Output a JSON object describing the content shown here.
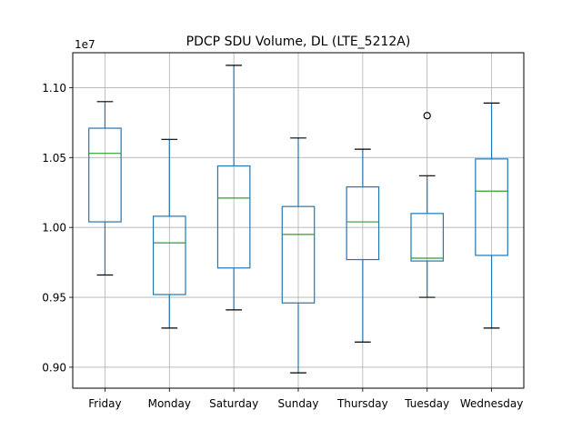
{
  "chart_data": {
    "type": "box",
    "title": "PDCP SDU Volume, DL (LTE_5212A)",
    "xlabel": "",
    "ylabel": "",
    "y_offset_text": "1e7",
    "ylim": [
      0.885,
      1.125
    ],
    "yticks": [
      0.9,
      0.95,
      1.0,
      1.05,
      1.1
    ],
    "ytick_labels": [
      "0.90",
      "0.95",
      "1.00",
      "1.05",
      "1.10"
    ],
    "grid": true,
    "colors": {
      "box": "#1f77b4",
      "median": "#2ca02c",
      "cap": "#000000",
      "grid": "#b0b0b0",
      "flier": "#000000"
    },
    "categories": [
      "Friday",
      "Monday",
      "Saturday",
      "Sunday",
      "Thursday",
      "Tuesday",
      "Wednesday"
    ],
    "boxes": [
      {
        "whislo": 0.966,
        "q1": 1.004,
        "med": 1.053,
        "q3": 1.071,
        "whishi": 1.09,
        "fliers": []
      },
      {
        "whislo": 0.928,
        "q1": 0.952,
        "med": 0.989,
        "q3": 1.008,
        "whishi": 1.063,
        "fliers": []
      },
      {
        "whislo": 0.941,
        "q1": 0.971,
        "med": 1.021,
        "q3": 1.044,
        "whishi": 1.116,
        "fliers": []
      },
      {
        "whislo": 0.896,
        "q1": 0.946,
        "med": 0.995,
        "q3": 1.015,
        "whishi": 1.064,
        "fliers": []
      },
      {
        "whislo": 0.918,
        "q1": 0.977,
        "med": 1.004,
        "q3": 1.029,
        "whishi": 1.056,
        "fliers": []
      },
      {
        "whislo": 0.95,
        "q1": 0.976,
        "med": 0.978,
        "q3": 1.01,
        "whishi": 1.037,
        "fliers": [
          1.08
        ]
      },
      {
        "whislo": 0.928,
        "q1": 0.98,
        "med": 1.026,
        "q3": 1.049,
        "whishi": 1.089,
        "fliers": []
      }
    ]
  }
}
